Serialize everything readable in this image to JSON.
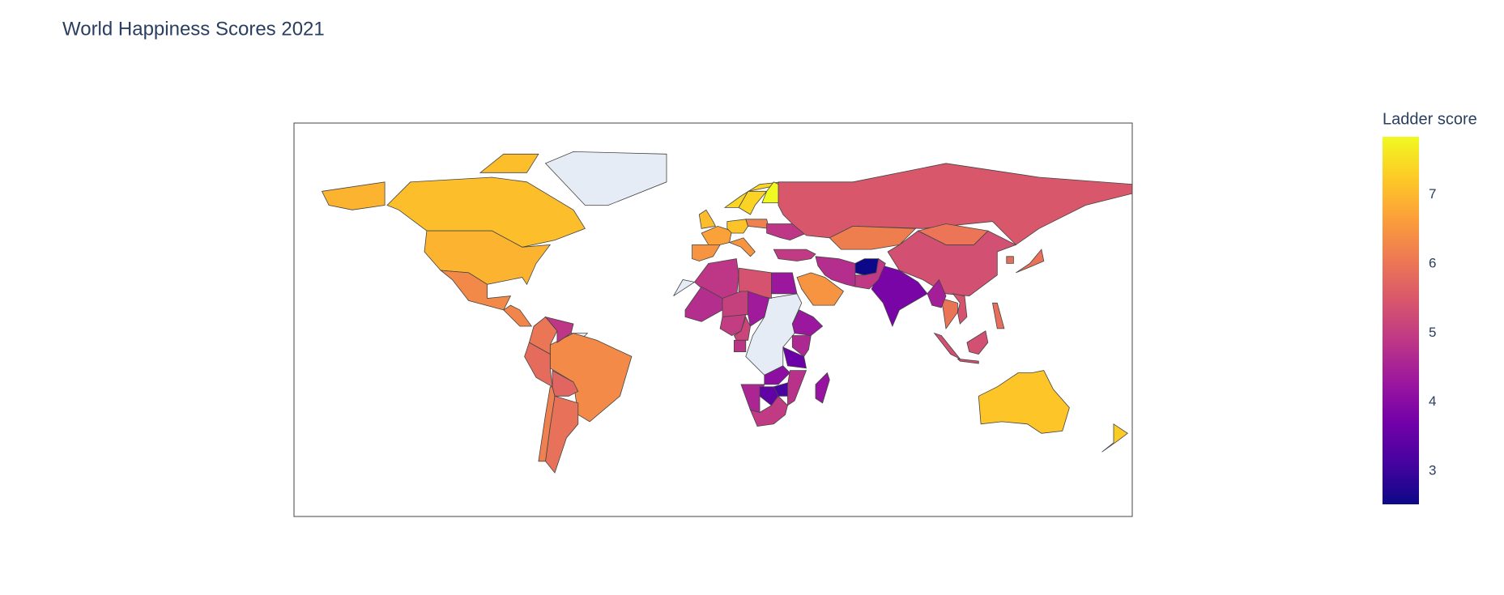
{
  "chart_data": {
    "type": "choropleth",
    "title": "World Happiness Scores 2021",
    "colorbar_title": "Ladder score",
    "values": [
      7.1,
      6.95,
      6.32,
      6.26,
      6.33,
      6.01,
      4.89,
      5.84,
      5.93,
      6.17,
      5.72,
      6.69,
      6.49,
      7.06,
      7.16,
      7.39,
      7.36,
      7.84,
      6.48,
      6.17,
      4.88,
      4.95,
      5.48,
      6.15,
      5.34,
      6.0,
      3.82,
      2.52,
      4.93,
      4.72,
      6.49,
      4.28,
      4.89,
      5.41,
      4.72,
      5.07,
      4.36,
      5.0,
      4.28,
      4.61,
      3.62,
      4.07,
      3.15,
      4.79,
      4.57,
      3.47,
      4.96,
      4.21,
      5.14,
      4.85,
      5.99,
      4.43,
      5.41,
      5.35,
      5.88,
      5.94,
      5.85,
      7.18,
      7.28
    ],
    "colorscale": [
      "#0d0887",
      "#46039f",
      "#7201a8",
      "#9c179e",
      "#bd3786",
      "#d8576b",
      "#ed7953",
      "#fb9f3a",
      "#fdca26",
      "#f0f921"
    ],
    "zlim": [
      2.52,
      7.84
    ],
    "zticks": [
      3,
      4,
      5,
      6,
      7
    ],
    "missing_color": "#e5ecf6",
    "border_color": "#444444"
  }
}
